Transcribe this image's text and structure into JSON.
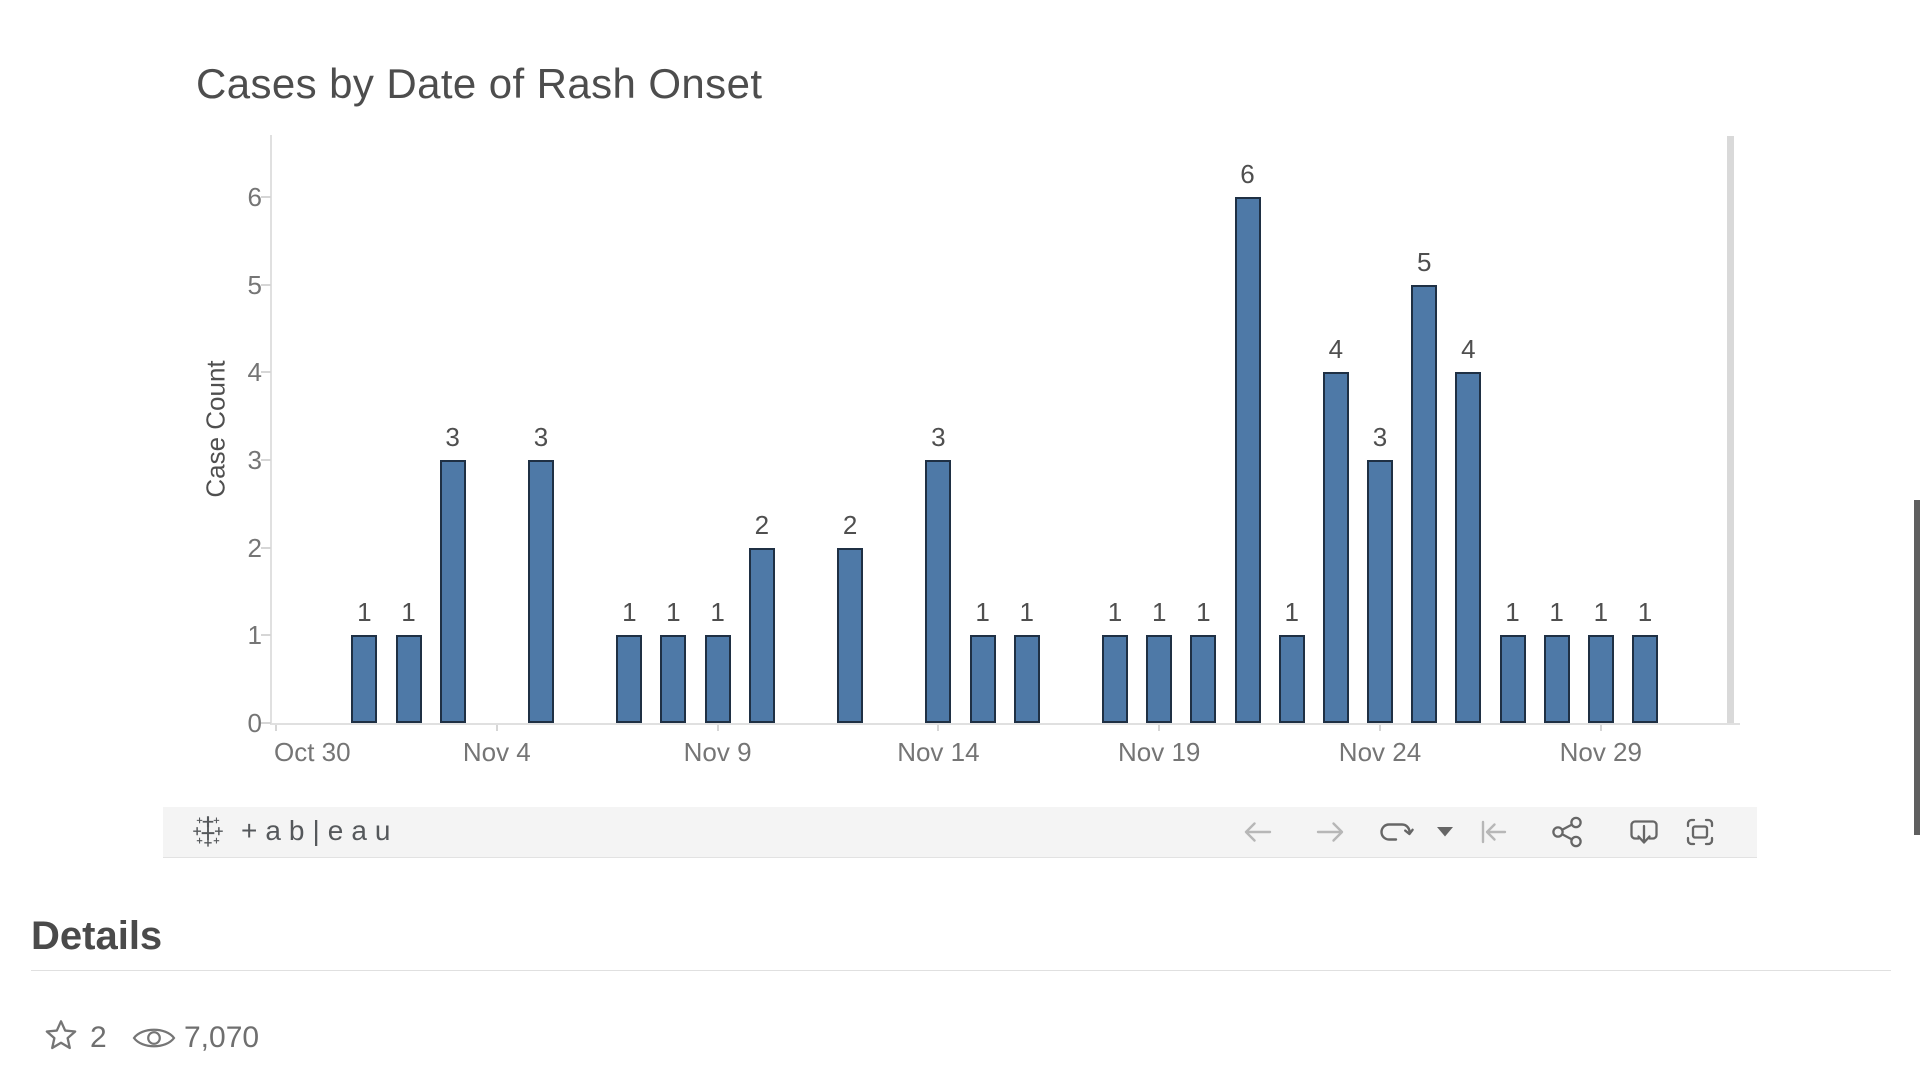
{
  "chart_data": {
    "type": "bar",
    "title": "Cases by Date of Rash Onset",
    "xlabel": "",
    "ylabel": "Case Count",
    "ylim": [
      0,
      6.7
    ],
    "y_ticks": [
      0,
      1,
      2,
      3,
      4,
      5,
      6
    ],
    "x_ticks": [
      {
        "label": "Oct 30",
        "day": 0,
        "align": "left"
      },
      {
        "label": "Nov 4",
        "day": 5,
        "align": "center"
      },
      {
        "label": "Nov 9",
        "day": 10,
        "align": "center"
      },
      {
        "label": "Nov 14",
        "day": 15,
        "align": "center"
      },
      {
        "label": "Nov 19",
        "day": 20,
        "align": "center"
      },
      {
        "label": "Nov 24",
        "day": 25,
        "align": "center"
      },
      {
        "label": "Nov 29",
        "day": 30,
        "align": "center"
      }
    ],
    "grid": false,
    "legend": false,
    "bar_fill": "#4e79a7",
    "bar_stroke": "#1f3044",
    "points": [
      {
        "date": "Nov 1",
        "day": 2,
        "value": 1
      },
      {
        "date": "Nov 2",
        "day": 3,
        "value": 1
      },
      {
        "date": "Nov 3",
        "day": 4,
        "value": 3
      },
      {
        "date": "Nov 5",
        "day": 6,
        "value": 3
      },
      {
        "date": "Nov 7",
        "day": 8,
        "value": 1
      },
      {
        "date": "Nov 8",
        "day": 9,
        "value": 1
      },
      {
        "date": "Nov 9",
        "day": 10,
        "value": 1
      },
      {
        "date": "Nov 10",
        "day": 11,
        "value": 2
      },
      {
        "date": "Nov 12",
        "day": 13,
        "value": 2
      },
      {
        "date": "Nov 14",
        "day": 15,
        "value": 3
      },
      {
        "date": "Nov 15",
        "day": 16,
        "value": 1
      },
      {
        "date": "Nov 16",
        "day": 17,
        "value": 1
      },
      {
        "date": "Nov 18",
        "day": 19,
        "value": 1
      },
      {
        "date": "Nov 19",
        "day": 20,
        "value": 1
      },
      {
        "date": "Nov 20",
        "day": 21,
        "value": 1
      },
      {
        "date": "Nov 21",
        "day": 22,
        "value": 6
      },
      {
        "date": "Nov 22",
        "day": 23,
        "value": 1
      },
      {
        "date": "Nov 23",
        "day": 24,
        "value": 4
      },
      {
        "date": "Nov 24",
        "day": 25,
        "value": 3
      },
      {
        "date": "Nov 25",
        "day": 26,
        "value": 5
      },
      {
        "date": "Nov 26",
        "day": 27,
        "value": 4
      },
      {
        "date": "Nov 27",
        "day": 28,
        "value": 1
      },
      {
        "date": "Nov 28",
        "day": 29,
        "value": 1
      },
      {
        "date": "Nov 29",
        "day": 30,
        "value": 1
      },
      {
        "date": "Nov 30",
        "day": 31,
        "value": 1
      }
    ]
  },
  "toolbar": {
    "logo_text": "+ab|eau",
    "colors": {
      "enabled": "#666666",
      "disabled": "#b7b7b7",
      "background": "#f4f4f4"
    },
    "icons": [
      {
        "name": "undo-icon",
        "enabled": false
      },
      {
        "name": "redo-icon",
        "enabled": false
      },
      {
        "name": "replay-icon",
        "enabled": true
      },
      {
        "name": "caret-down-icon",
        "enabled": true
      },
      {
        "name": "revert-icon",
        "enabled": false
      },
      {
        "name": "share-icon",
        "enabled": true
      },
      {
        "name": "download-icon",
        "enabled": true
      },
      {
        "name": "fullscreen-icon",
        "enabled": true
      }
    ]
  },
  "details": {
    "heading": "Details",
    "favorites_count": "2",
    "views_count": "7,070"
  }
}
